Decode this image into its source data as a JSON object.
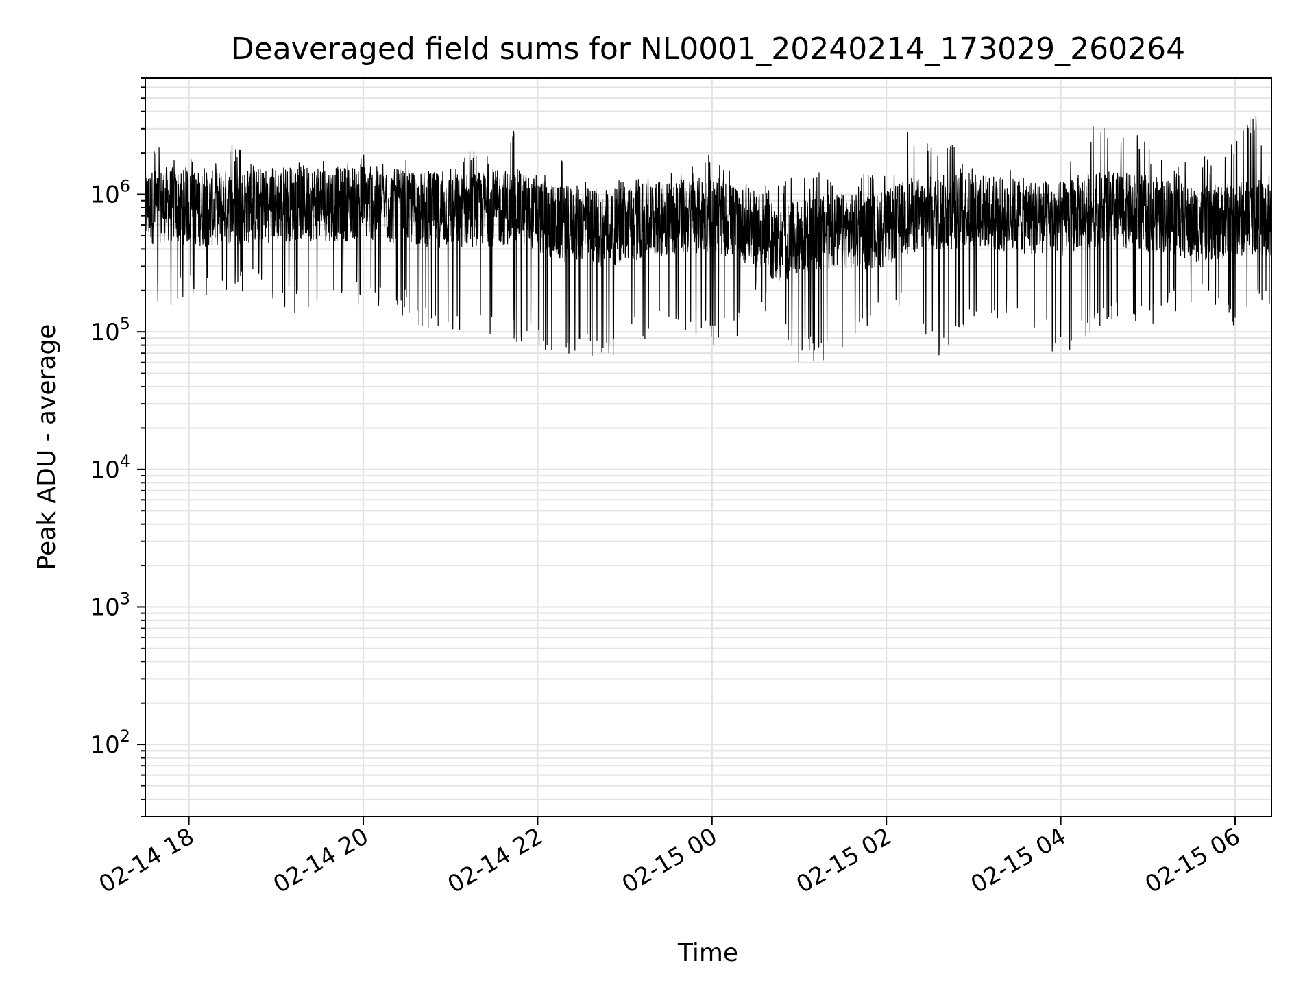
{
  "chart_data": {
    "type": "line",
    "title": "Deaveraged field sums for NL0001_20240214_173029_260264",
    "xlabel": "Time",
    "ylabel": "Peak ADU - average",
    "yscale": "log",
    "ylim": [
      30,
      7000000
    ],
    "xlim": [
      "2024-02-14 17:30",
      "2024-02-15 06:25"
    ],
    "grid": true,
    "x_ticks": [
      {
        "value": "2024-02-14 18:00",
        "label": "02-14 18"
      },
      {
        "value": "2024-02-14 20:00",
        "label": "02-14 20"
      },
      {
        "value": "2024-02-14 22:00",
        "label": "02-14 22"
      },
      {
        "value": "2024-02-15 00:00",
        "label": "02-15 00"
      },
      {
        "value": "2024-02-15 02:00",
        "label": "02-15 02"
      },
      {
        "value": "2024-02-15 04:00",
        "label": "02-15 04"
      },
      {
        "value": "2024-02-15 06:00",
        "label": "02-15 06"
      }
    ],
    "y_ticks": [
      {
        "value": 100,
        "base": "10",
        "exp": "2"
      },
      {
        "value": 1000,
        "base": "10",
        "exp": "3"
      },
      {
        "value": 10000,
        "base": "10",
        "exp": "4"
      },
      {
        "value": 100000,
        "base": "10",
        "exp": "5"
      },
      {
        "value": 1000000,
        "base": "10",
        "exp": "6"
      }
    ],
    "series": [
      {
        "color": "#000000",
        "x": [
          "2024-02-14 17:30",
          "2024-02-14 17:45",
          "2024-02-14 18:00",
          "2024-02-14 18:15",
          "2024-02-14 18:30",
          "2024-02-14 18:45",
          "2024-02-14 19:00",
          "2024-02-14 19:15",
          "2024-02-14 19:30",
          "2024-02-14 19:45",
          "2024-02-14 20:00",
          "2024-02-14 20:15",
          "2024-02-14 20:30",
          "2024-02-14 20:45",
          "2024-02-14 21:00",
          "2024-02-14 21:15",
          "2024-02-14 21:30",
          "2024-02-14 21:45",
          "2024-02-14 22:00",
          "2024-02-14 22:15",
          "2024-02-14 22:30",
          "2024-02-14 22:45",
          "2024-02-14 23:00",
          "2024-02-14 23:15",
          "2024-02-14 23:30",
          "2024-02-14 23:45",
          "2024-02-15 00:00",
          "2024-02-15 00:15",
          "2024-02-15 00:30",
          "2024-02-15 00:45",
          "2024-02-15 01:00",
          "2024-02-15 01:15",
          "2024-02-15 01:30",
          "2024-02-15 01:45",
          "2024-02-15 02:00",
          "2024-02-15 02:15",
          "2024-02-15 02:30",
          "2024-02-15 02:45",
          "2024-02-15 03:00",
          "2024-02-15 03:15",
          "2024-02-15 03:30",
          "2024-02-15 03:45",
          "2024-02-15 04:00",
          "2024-02-15 04:15",
          "2024-02-15 04:30",
          "2024-02-15 04:45",
          "2024-02-15 05:00",
          "2024-02-15 05:15",
          "2024-02-15 05:30",
          "2024-02-15 05:45",
          "2024-02-15 06:00",
          "2024-02-15 06:15",
          "2024-02-15 06:25"
        ],
        "low": [
          200000,
          120000,
          190000,
          170000,
          200000,
          190000,
          160000,
          130000,
          150000,
          140000,
          150000,
          140000,
          130000,
          100000,
          85000,
          120000,
          90000,
          85000,
          70000,
          55000,
          80000,
          52000,
          80000,
          85000,
          100000,
          100000,
          75000,
          85000,
          150000,
          100000,
          60000,
          58000,
          75000,
          100000,
          120000,
          130000,
          65000,
          65000,
          120000,
          100000,
          130000,
          90000,
          62000,
          90000,
          100000,
          120000,
          100000,
          140000,
          140000,
          150000,
          100000,
          200000,
          95000
        ],
        "high": [
          2500000,
          2400000,
          1900000,
          1700000,
          2500000,
          1600000,
          1900000,
          1800000,
          1700000,
          2000000,
          2000000,
          1700000,
          1800000,
          1900000,
          2000000,
          2300000,
          1800000,
          3900000,
          1600000,
          2000000,
          1400000,
          1200000,
          1300000,
          1400000,
          1400000,
          1600000,
          2000000,
          1400000,
          1200000,
          1200000,
          1400000,
          1500000,
          1200000,
          1500000,
          1400000,
          3500000,
          2300000,
          2400000,
          1600000,
          1500000,
          1500000,
          1400000,
          1400000,
          2800000,
          3500000,
          3300000,
          2400000,
          1700000,
          1800000,
          2000000,
          2700000,
          4000000,
          1600000
        ],
        "typical": [
          800000,
          850000,
          800000,
          780000,
          820000,
          830000,
          850000,
          860000,
          870000,
          850000,
          900000,
          820000,
          800000,
          780000,
          760000,
          780000,
          790000,
          820000,
          700000,
          600000,
          620000,
          560000,
          600000,
          640000,
          680000,
          700000,
          720000,
          640000,
          560000,
          420000,
          480000,
          520000,
          540000,
          520000,
          560000,
          700000,
          720000,
          750000,
          780000,
          720000,
          700000,
          680000,
          650000,
          760000,
          800000,
          760000,
          720000,
          700000,
          600000,
          620000,
          650000,
          700000,
          620000
        ]
      }
    ]
  }
}
